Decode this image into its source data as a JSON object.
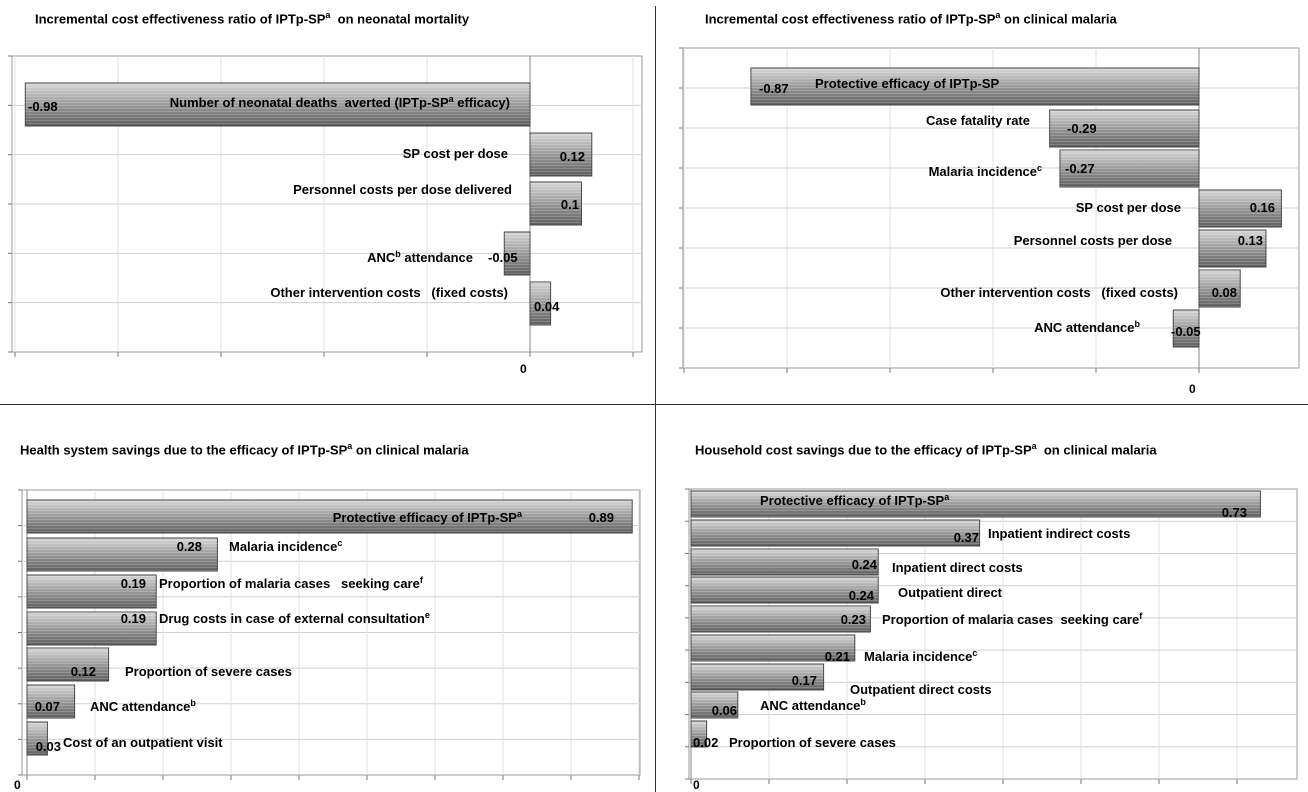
{
  "chart_data": [
    {
      "type": "bar",
      "orientation": "horizontal",
      "title": "Incremental cost effectiveness ratio of IPTp-SP",
      "title_sup": "a",
      "title_suffix": "  on neonatal mortality",
      "zero_label": "0",
      "grid": true,
      "bars": [
        {
          "label": "Number of neonatal deaths  averted (IPTp-SP",
          "label_sup": "a",
          "label_suffix": " efficacy)",
          "value": -0.98,
          "value_label": "-0.98"
        },
        {
          "label": "SP cost per dose",
          "value": 0.12,
          "value_label": "0.12"
        },
        {
          "label": "Personnel costs per dose delivered",
          "value": 0.1,
          "value_label": "0.1"
        },
        {
          "label": "ANC",
          "label_sup": "b",
          "label_suffix": " attendance",
          "value": -0.05,
          "value_label": "-0.05"
        },
        {
          "label": "Other intervention costs   (fixed costs)",
          "value": 0.04,
          "value_label": "0.04"
        }
      ]
    },
    {
      "type": "bar",
      "orientation": "horizontal",
      "title": "Incremental cost effectiveness ratio of IPTp-SP",
      "title_sup": "a",
      "title_suffix": " on clinical malaria",
      "zero_label": "0",
      "grid": true,
      "bars": [
        {
          "label": "Protective efficacy of IPTp-SP",
          "value": -0.87,
          "value_label": "-0.87"
        },
        {
          "label": "Case fatality rate",
          "value": -0.29,
          "value_label": "-0.29"
        },
        {
          "label": "Malaria incidence",
          "label_sup": "c",
          "value": -0.27,
          "value_label": "-0.27"
        },
        {
          "label": "SP cost per dose",
          "value": 0.16,
          "value_label": "0.16"
        },
        {
          "label": "Personnel costs per dose",
          "value": 0.13,
          "value_label": "0.13"
        },
        {
          "label": "Other intervention costs   (fixed costs)",
          "value": 0.08,
          "value_label": "0.08"
        },
        {
          "label": "ANC attendance",
          "label_sup": "b",
          "value": -0.05,
          "value_label": "-0.05"
        }
      ]
    },
    {
      "type": "bar",
      "orientation": "horizontal",
      "title": "Health system savings due to the efficacy of IPTp-SP",
      "title_sup": "a",
      "title_suffix": " on clinical malaria",
      "zero_label": "0",
      "grid": true,
      "bars": [
        {
          "label": "Protective efficacy of IPTp-SP",
          "label_sup": "a",
          "value": 0.89,
          "value_label": "0.89"
        },
        {
          "label": "Malaria incidence",
          "label_sup": "c",
          "value": 0.28,
          "value_label": "0.28"
        },
        {
          "label": "Proportion of malaria cases   seeking care",
          "label_sup": "f",
          "value": 0.19,
          "value_label": "0.19"
        },
        {
          "label": "Drug costs in case of external consultation",
          "label_sup": "e",
          "value": 0.19,
          "value_label": "0.19"
        },
        {
          "label": "Proportion of severe cases",
          "value": 0.12,
          "value_label": "0.12"
        },
        {
          "label": "ANC attendance",
          "label_sup": "b",
          "value": 0.07,
          "value_label": "0.07"
        },
        {
          "label": "Cost of an outpatient visit",
          "value": 0.03,
          "value_label": "0.03"
        }
      ]
    },
    {
      "type": "bar",
      "orientation": "horizontal",
      "title": "Household cost savings due to the efficacy of IPTp-SP",
      "title_sup": "a",
      "title_suffix": "  on clinical malaria",
      "zero_label": "0",
      "grid": true,
      "bars": [
        {
          "label": "Protective efficacy of IPTp-SP",
          "label_sup": "a",
          "value": 0.73,
          "value_label": "0.73"
        },
        {
          "label": "Inpatient indirect costs",
          "value": 0.37,
          "value_label": "0.37"
        },
        {
          "label": "Inpatient direct costs",
          "value": 0.24,
          "value_label": "0.24"
        },
        {
          "label": "Outpatient direct",
          "value": 0.24,
          "value_label": "0.24"
        },
        {
          "label": "Proportion of malaria cases  seeking care",
          "label_sup": "f",
          "value": 0.23,
          "value_label": "0.23"
        },
        {
          "label": "Malaria incidence",
          "label_sup": "c",
          "value": 0.21,
          "value_label": "0.21"
        },
        {
          "label": "Outpatient direct costs",
          "value": 0.17,
          "value_label": "0.17"
        },
        {
          "label": "ANC attendance",
          "label_sup": "b",
          "value": 0.06,
          "value_label": "0.06"
        },
        {
          "label": "Proportion of severe cases",
          "value": 0.02,
          "value_label": "0.02"
        }
      ]
    }
  ]
}
